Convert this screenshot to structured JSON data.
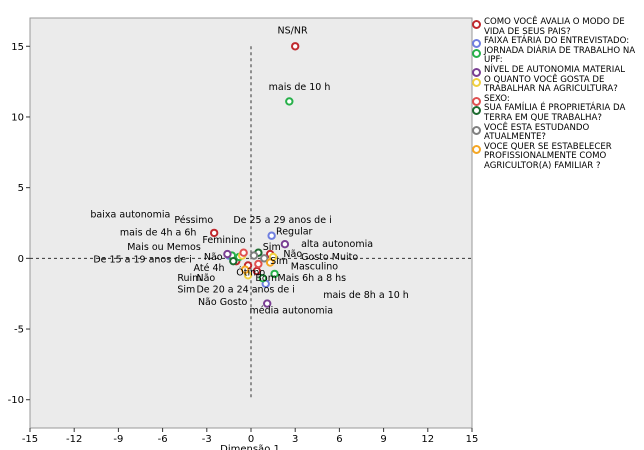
{
  "chart_data": {
    "type": "scatter",
    "title": "",
    "xlabel": "Dimensão 1",
    "ylabel": "",
    "xlim": [
      -15,
      15
    ],
    "ylim": [
      -12,
      17
    ],
    "xticks": [
      -15,
      -12,
      -9,
      -6,
      -3,
      0,
      3,
      6,
      9,
      12,
      15
    ],
    "yticks": [
      -10,
      -5,
      0,
      5,
      10,
      15
    ],
    "series": [
      {
        "name": "COMO VOCÊ AVALIA O MODO DE VIDA DE SEUS PAIS?",
        "color": "#c0282d",
        "points": [
          {
            "x": 3.0,
            "y": 15.0,
            "label": "NS/NR"
          },
          {
            "x": -2.5,
            "y": 1.8,
            "label": "Péssimo"
          },
          {
            "x": 1.3,
            "y": 0.3,
            "label": "Regular"
          },
          {
            "x": -0.2,
            "y": -0.5,
            "label": "Ótimo"
          },
          {
            "x": 0.4,
            "y": -0.9,
            "label": "Bom"
          },
          {
            "x": -1.0,
            "y": -0.2,
            "label": "Ruim"
          }
        ]
      },
      {
        "name": "FAIXA ETÁRIA DO ENTREVISTADO:",
        "color": "#6f7fe0",
        "points": [
          {
            "x": 1.4,
            "y": 1.6,
            "label": "De 25 a 29 anos de i"
          },
          {
            "x": -1.5,
            "y": 0.2,
            "label": "De 15 a 19 anos de i"
          },
          {
            "x": 1.0,
            "y": -1.8,
            "label": "De 20 a 24 anos de i"
          }
        ]
      },
      {
        "name": "JORNADA DIÁRIA DE TRABALHO NA UPF:",
        "color": "#27b04a",
        "points": [
          {
            "x": 2.6,
            "y": 11.1,
            "label": "mais de 10 h"
          },
          {
            "x": -0.8,
            "y": 0.1,
            "label": "Até 4h"
          },
          {
            "x": 1.6,
            "y": -1.1,
            "label": "Mais 6h a 8 hs"
          },
          {
            "x": 0.8,
            "y": -1.4,
            "label": "mais de 8h a 10 h"
          },
          {
            "x": -1.3,
            "y": 0.2,
            "label": "mais de 4h a 6h"
          }
        ]
      },
      {
        "name": "NÍVEL DE AUTONOMIA MATERIAL",
        "color": "#7a3f93",
        "points": [
          {
            "x": -1.6,
            "y": 0.3,
            "label": "baixa autonomia"
          },
          {
            "x": 2.3,
            "y": 1.0,
            "label": "alta autonomia"
          },
          {
            "x": 1.1,
            "y": -3.2,
            "label": "média autonomia"
          }
        ]
      },
      {
        "name": "O QUANTO VOCÊ GOSTA DE TRABALHAR NA AGRICULTURA?",
        "color": "#f0d040",
        "points": [
          {
            "x": -0.6,
            "y": 0.2,
            "label": "Mais ou Memos"
          },
          {
            "x": 1.5,
            "y": 0.1,
            "label": "Gosto Muito"
          },
          {
            "x": -0.2,
            "y": -1.2,
            "label": "Não Gosto"
          }
        ]
      },
      {
        "name": "SEXO:",
        "color": "#e05050",
        "points": [
          {
            "x": -0.5,
            "y": 0.4,
            "label": "Feminino"
          },
          {
            "x": 0.5,
            "y": -0.4,
            "label": "Masculino"
          }
        ]
      },
      {
        "name": "SUA FAMÍLIA É PROPRIETÁRIA DA TERRA EM QUE TRABALHA?",
        "color": "#1d6b2f",
        "points": [
          {
            "x": 0.5,
            "y": 0.4,
            "label": "Sim"
          },
          {
            "x": -1.2,
            "y": -0.2,
            "label": "Não"
          }
        ]
      },
      {
        "name": "VOCÊ ESTA ESTUDANDO ATUALMENTE?",
        "color": "#7f7f7f",
        "points": [
          {
            "x": 0.2,
            "y": 0.2,
            "label": "Sim"
          },
          {
            "x": 0.9,
            "y": 0.0,
            "label": "Não"
          }
        ]
      },
      {
        "name": "VOCE QUER SE ESTABELECER PROFISSIONALMENTE COMO AGRICULTOR(A) FAMILIAR ?",
        "color": "#f5a623",
        "points": [
          {
            "x": 1.3,
            "y": -0.3,
            "label": "Sim"
          },
          {
            "x": -0.4,
            "y": -0.8,
            "label": "Não"
          }
        ]
      }
    ],
    "annotations": [
      {
        "text": "NS/NR",
        "x": 1.8,
        "y": 15.9
      },
      {
        "text": "mais de 10 h",
        "x": 1.2,
        "y": 11.9
      },
      {
        "text": "baixa autonomia",
        "x": -10.9,
        "y": 2.9
      },
      {
        "text": "Péssimo",
        "x": -5.2,
        "y": 2.5
      },
      {
        "text": "De 25 a 29 anos de i",
        "x": -1.2,
        "y": 2.5
      },
      {
        "text": "mais de 4h a 6h",
        "x": -8.9,
        "y": 1.6
      },
      {
        "text": "Regular",
        "x": 1.7,
        "y": 1.7
      },
      {
        "text": "Feminino",
        "x": -3.3,
        "y": 1.1
      },
      {
        "text": "alta autonomia",
        "x": 3.4,
        "y": 0.8
      },
      {
        "text": "Mais ou Memos",
        "x": -8.4,
        "y": 0.6
      },
      {
        "text": "Sim",
        "x": 0.8,
        "y": 0.6
      },
      {
        "text": "Não",
        "x": 2.2,
        "y": 0.1
      },
      {
        "text": "Não",
        "x": -3.2,
        "y": -0.1
      },
      {
        "text": "Gosto Muito",
        "x": 3.4,
        "y": -0.1
      },
      {
        "text": "De 15 a 19 anos de i",
        "x": -10.7,
        "y": -0.3
      },
      {
        "text": "Sim",
        "x": 1.3,
        "y": -0.4
      },
      {
        "text": "Masculino",
        "x": 2.7,
        "y": -0.8
      },
      {
        "text": "Até 4h",
        "x": -3.9,
        "y": -0.9
      },
      {
        "text": "Ótimo",
        "x": -1.0,
        "y": -1.2
      },
      {
        "text": "Ruim",
        "x": -5.0,
        "y": -1.6
      },
      {
        "text": "Não",
        "x": -3.7,
        "y": -1.6
      },
      {
        "text": "Bom",
        "x": 0.3,
        "y": -1.6
      },
      {
        "text": "Mais  6h a 8 hs",
        "x": 1.8,
        "y": -1.6
      },
      {
        "text": "Sim",
        "x": -5.0,
        "y": -2.4
      },
      {
        "text": "De 20 a 24 anos de i",
        "x": -3.7,
        "y": -2.4
      },
      {
        "text": "mais de 8h a 10 h",
        "x": 4.9,
        "y": -2.8
      },
      {
        "text": "Não Gosto",
        "x": -3.6,
        "y": -3.3
      },
      {
        "text": "média autonomia",
        "x": -0.1,
        "y": -3.9
      }
    ],
    "reference_lines": {
      "x": 0,
      "y": 0
    },
    "grid": false,
    "legend_position": "right"
  }
}
